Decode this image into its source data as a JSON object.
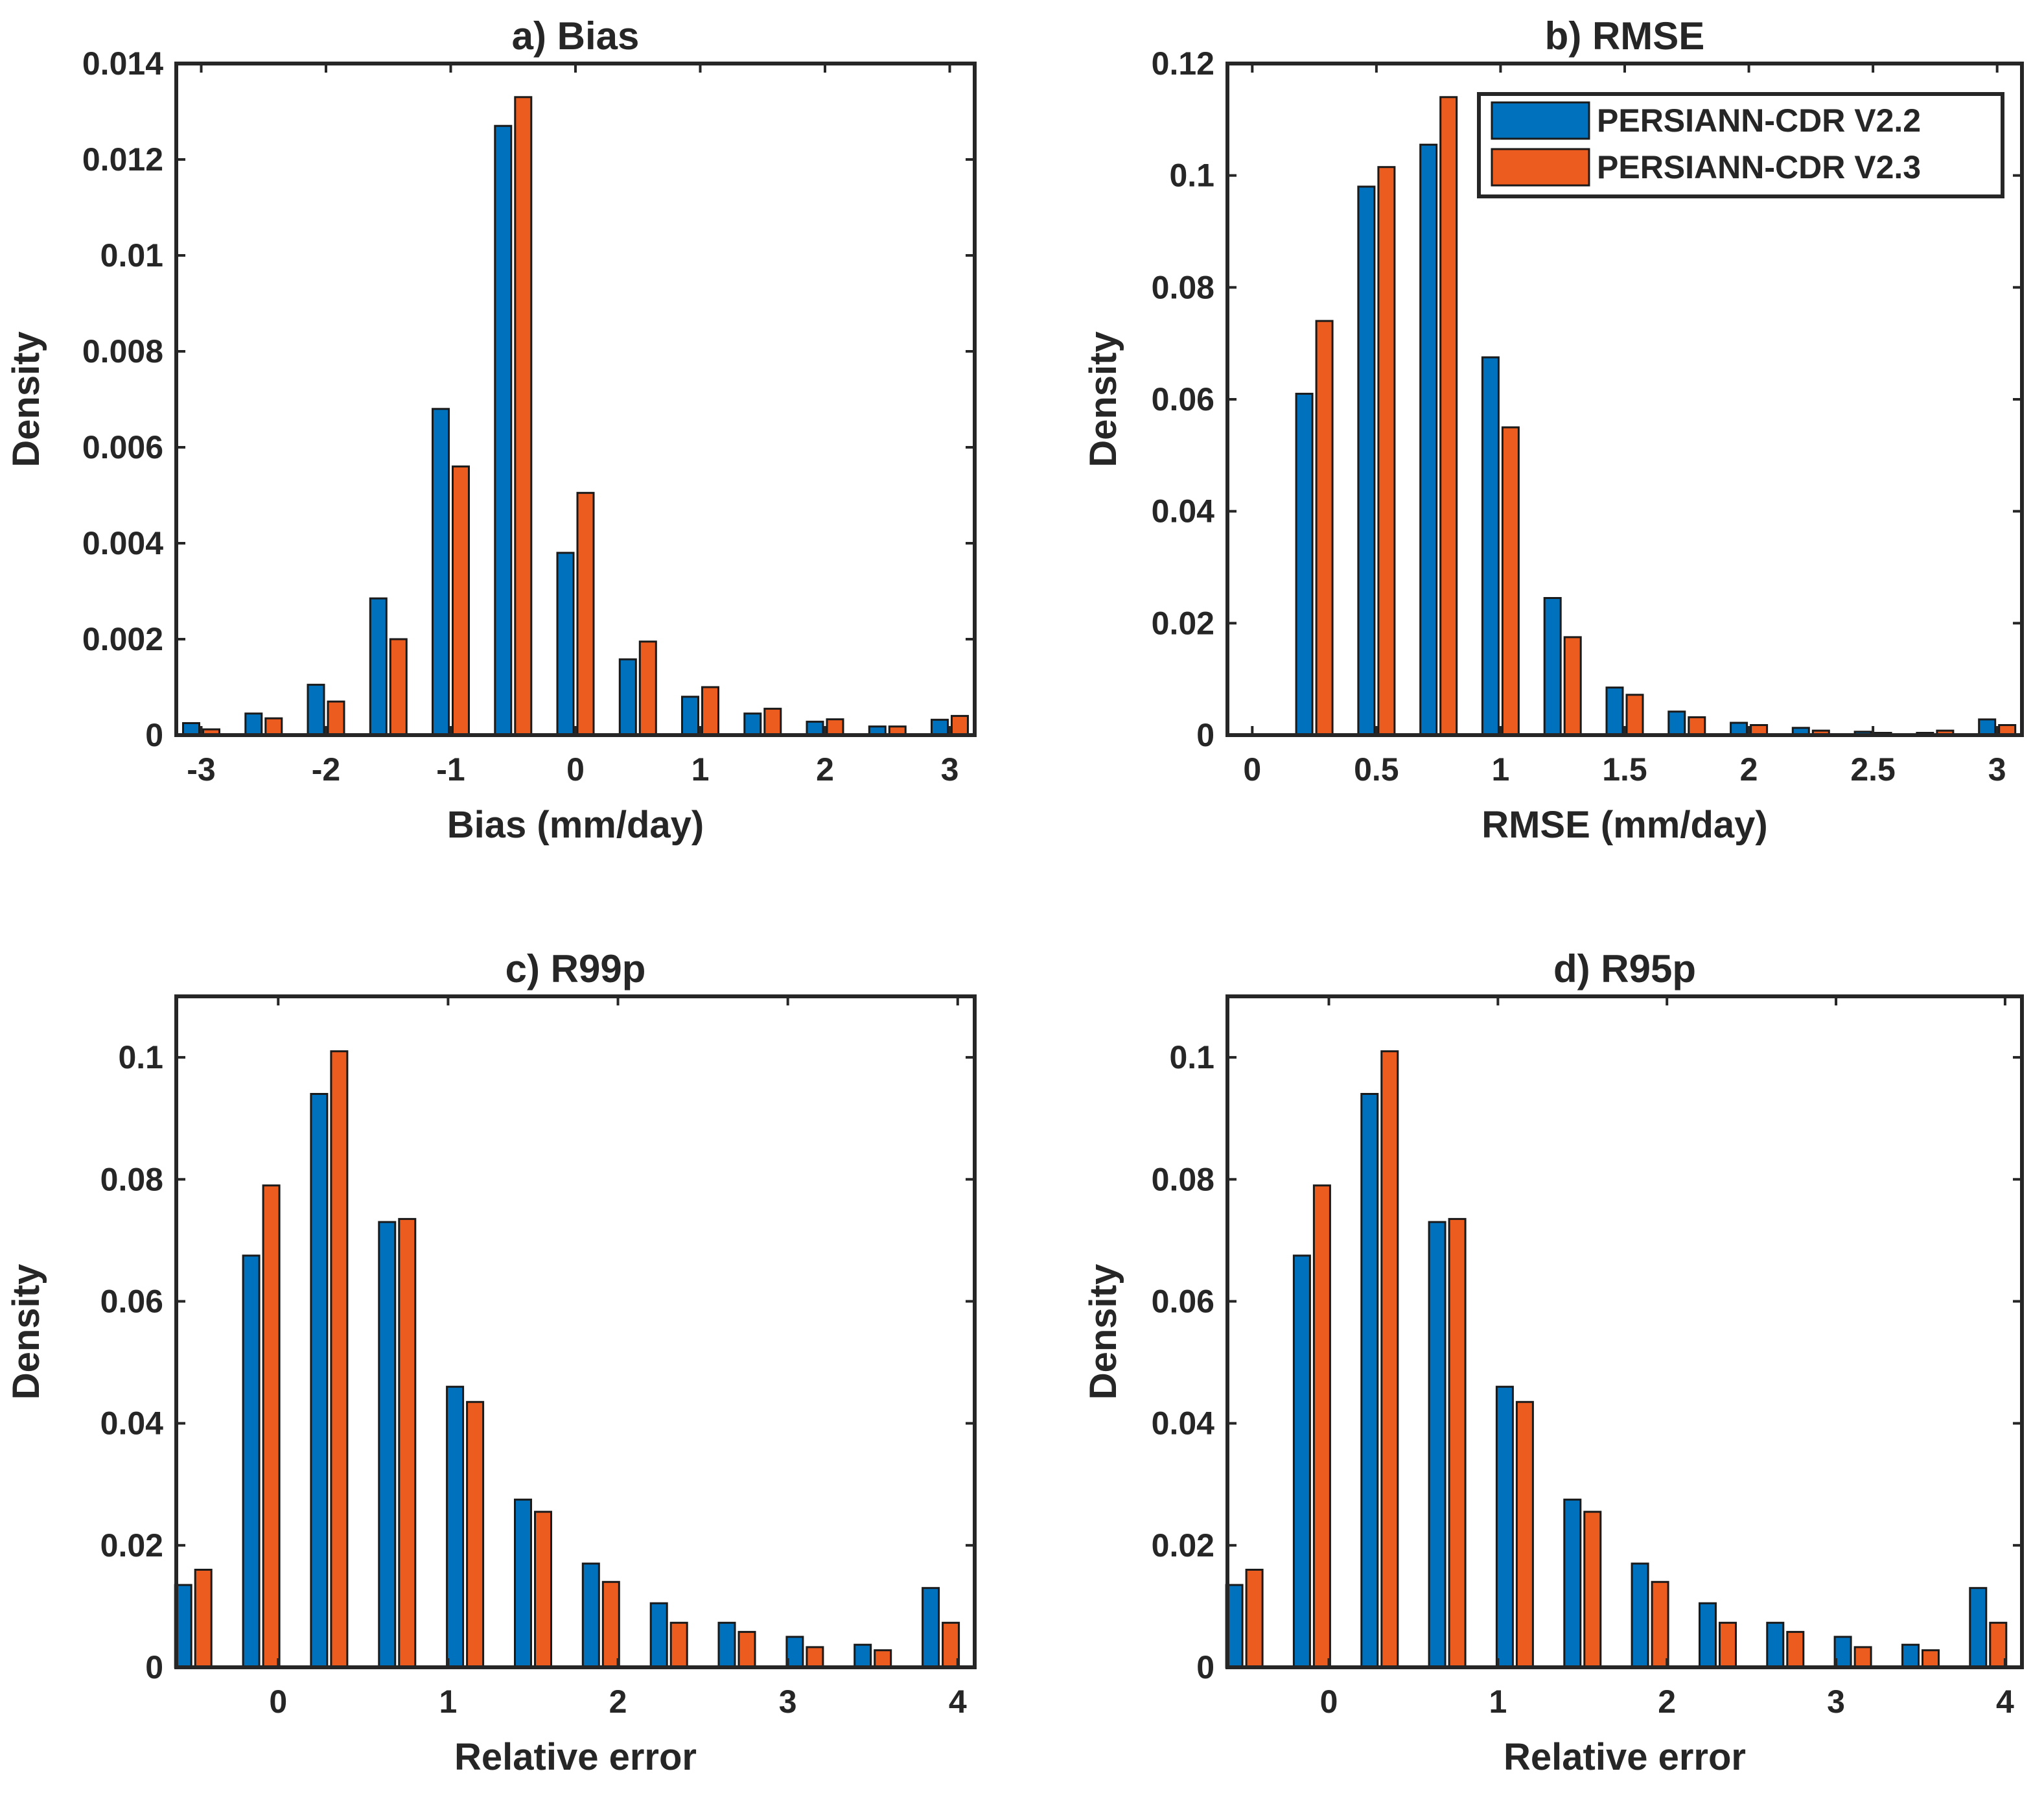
{
  "legend": {
    "entries": [
      "PERSIANN-CDR V2.2",
      "PERSIANN-CDR V2.3"
    ],
    "placement": "top-right of panel b"
  },
  "colors": {
    "series1": "#0072BD",
    "series2": "#ED5C1F",
    "axis": "#262626"
  },
  "chart_data": [
    {
      "type": "bar",
      "title": "a) Bias",
      "xlabel": "Bias (mm/day)",
      "ylabel": "Density",
      "xlim": [
        -3.2,
        3.2
      ],
      "ylim": [
        0,
        0.014
      ],
      "xticks": [
        -3,
        -2,
        -1,
        0,
        1,
        2,
        3
      ],
      "xtick_labels": [
        "-3",
        "-2",
        "-1",
        "0",
        "1",
        "2",
        "3"
      ],
      "yticks": [
        0,
        0.002,
        0.004,
        0.006,
        0.008,
        0.01,
        0.012,
        0.014
      ],
      "ytick_labels": [
        "0",
        "0.002",
        "0.004",
        "0.006",
        "0.008",
        "0.01",
        "0.012",
        "0.014"
      ],
      "grid": false,
      "x": [
        -3,
        -2.5,
        -2,
        -1.5,
        -1,
        -0.5,
        0,
        0.5,
        1,
        1.5,
        2,
        2.5,
        3
      ],
      "series": [
        {
          "name": "PERSIANN-CDR V2.2",
          "values": [
            0.00025,
            0.00045,
            0.00105,
            0.00285,
            0.0068,
            0.0127,
            0.0038,
            0.00158,
            0.0008,
            0.00045,
            0.00028,
            0.00018,
            0.00032
          ]
        },
        {
          "name": "PERSIANN-CDR V2.3",
          "values": [
            0.00012,
            0.00035,
            0.0007,
            0.002,
            0.0056,
            0.0133,
            0.00505,
            0.00195,
            0.001,
            0.00055,
            0.00033,
            0.00018,
            0.0004
          ]
        }
      ]
    },
    {
      "type": "bar",
      "title": "b) RMSE",
      "xlabel": "RMSE (mm/day)",
      "ylabel": "Density",
      "xlim": [
        -0.1,
        3.1
      ],
      "ylim": [
        0,
        0.12
      ],
      "xticks": [
        0,
        0.5,
        1,
        1.5,
        2,
        2.5,
        3
      ],
      "xtick_labels": [
        "0",
        "0.5",
        "1",
        "1.5",
        "2",
        "2.5",
        "3"
      ],
      "yticks": [
        0,
        0.02,
        0.04,
        0.06,
        0.08,
        0.1,
        0.12
      ],
      "ytick_labels": [
        "0",
        "0.02",
        "0.04",
        "0.06",
        "0.08",
        "0.1",
        "0.12"
      ],
      "grid": false,
      "x": [
        0,
        0.25,
        0.5,
        0.75,
        1,
        1.25,
        1.5,
        1.75,
        2,
        2.25,
        2.5,
        2.75,
        3
      ],
      "series": [
        {
          "name": "PERSIANN-CDR V2.2",
          "values": [
            0,
            0.061,
            0.098,
            0.1055,
            0.0675,
            0.0245,
            0.0085,
            0.0042,
            0.0022,
            0.0013,
            0.0006,
            0.0004,
            0.0028
          ]
        },
        {
          "name": "PERSIANN-CDR V2.3",
          "values": [
            0,
            0.074,
            0.1015,
            0.114,
            0.055,
            0.0175,
            0.0072,
            0.0032,
            0.0018,
            0.0008,
            0.0004,
            0.0008,
            0.0018
          ]
        }
      ]
    },
    {
      "type": "bar",
      "title": "c) R99p",
      "xlabel": "Relative error",
      "ylabel": "Density",
      "xlim": [
        -0.6,
        4.1
      ],
      "ylim": [
        0,
        0.11
      ],
      "xticks": [
        0,
        1,
        2,
        3,
        4
      ],
      "xtick_labels": [
        "0",
        "1",
        "2",
        "3",
        "4"
      ],
      "yticks": [
        0,
        0.02,
        0.04,
        0.06,
        0.08,
        0.1
      ],
      "ytick_labels": [
        "0",
        "0.02",
        "0.04",
        "0.06",
        "0.08",
        "0.1"
      ],
      "grid": false,
      "x": [
        -0.5,
        -0.1,
        0.3,
        0.7,
        1.1,
        1.5,
        1.9,
        2.3,
        2.7,
        3.1,
        3.5,
        3.9
      ],
      "series": [
        {
          "name": "PERSIANN-CDR V2.2",
          "values": [
            0.0135,
            0.0675,
            0.094,
            0.073,
            0.046,
            0.0275,
            0.017,
            0.0105,
            0.0073,
            0.005,
            0.0037,
            0.013
          ]
        },
        {
          "name": "PERSIANN-CDR V2.3",
          "values": [
            0.016,
            0.079,
            0.101,
            0.0735,
            0.0435,
            0.0255,
            0.014,
            0.0073,
            0.0058,
            0.0033,
            0.0028,
            0.0073
          ]
        }
      ]
    },
    {
      "type": "bar",
      "title": "d) R95p",
      "xlabel": "Relative error",
      "ylabel": "Density",
      "xlim": [
        -0.6,
        4.1
      ],
      "ylim": [
        0,
        0.11
      ],
      "xticks": [
        0,
        1,
        2,
        3,
        4
      ],
      "xtick_labels": [
        "0",
        "1",
        "2",
        "3",
        "4"
      ],
      "yticks": [
        0,
        0.02,
        0.04,
        0.06,
        0.08,
        0.1
      ],
      "ytick_labels": [
        "0",
        "0.02",
        "0.04",
        "0.06",
        "0.08",
        "0.1"
      ],
      "grid": false,
      "x": [
        -0.5,
        -0.1,
        0.3,
        0.7,
        1.1,
        1.5,
        1.9,
        2.3,
        2.7,
        3.1,
        3.5,
        3.9
      ],
      "series": [
        {
          "name": "PERSIANN-CDR V2.2",
          "values": [
            0.0135,
            0.0675,
            0.094,
            0.073,
            0.046,
            0.0275,
            0.017,
            0.0105,
            0.0073,
            0.005,
            0.0037,
            0.013
          ]
        },
        {
          "name": "PERSIANN-CDR V2.3",
          "values": [
            0.016,
            0.079,
            0.101,
            0.0735,
            0.0435,
            0.0255,
            0.014,
            0.0073,
            0.0058,
            0.0033,
            0.0028,
            0.0073
          ]
        }
      ]
    }
  ]
}
